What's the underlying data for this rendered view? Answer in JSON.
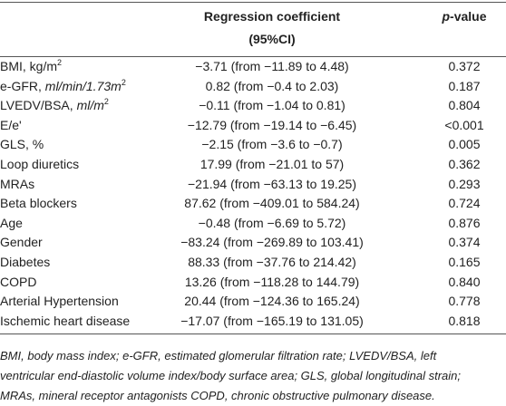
{
  "header": {
    "col2": [
      "Regression coefficient",
      "(95%CI)"
    ],
    "col3": [
      "p",
      "-value"
    ]
  },
  "table": {
    "rows": [
      {
        "label": [
          "BMI, kg/m",
          "2"
        ],
        "coef": "−3.71 (from −11.89 to 4.48)",
        "p": "0.372"
      },
      {
        "label": [
          "e-GFR, ",
          "ml/min/1.73m",
          "2"
        ],
        "coef": "0.82 (from −0.4 to 2.03)",
        "p": "0.187"
      },
      {
        "label": [
          "LVEDV/BSA, ",
          "ml/m",
          "2"
        ],
        "coef": "−0.11 (from −1.04 to 0.81)",
        "p": "0.804"
      },
      {
        "label": [
          "E/e'"
        ],
        "coef": "−12.79 (from −19.14 to −6.45)",
        "p": "<0.001"
      },
      {
        "label": [
          "GLS, %"
        ],
        "coef": "−2.15 (from −3.6 to −0.7)",
        "p": "0.005"
      },
      {
        "label": [
          "Loop diuretics"
        ],
        "coef": "17.99 (from −21.01 to 57)",
        "p": "0.362"
      },
      {
        "label": [
          "MRAs"
        ],
        "coef": "−21.94 (from −63.13 to 19.25)",
        "p": "0.293"
      },
      {
        "label": [
          "Beta blockers"
        ],
        "coef": "87.62 (from −409.01 to 584.24)",
        "p": "0.724"
      },
      {
        "label": [
          "Age"
        ],
        "coef": "−0.48 (from −6.69 to 5.72)",
        "p": "0.876"
      },
      {
        "label": [
          "Gender"
        ],
        "coef": "−83.24 (from −269.89 to 103.41)",
        "p": "0.374"
      },
      {
        "label": [
          "Diabetes"
        ],
        "coef": "88.33 (from −37.76 to 214.42)",
        "p": "0.165"
      },
      {
        "label": [
          "COPD"
        ],
        "coef": "13.26 (from −118.28 to 144.79)",
        "p": "0.840"
      },
      {
        "label": [
          "Arterial Hypertension"
        ],
        "coef": "20.44 (from −124.36 to 165.24)",
        "p": "0.778"
      },
      {
        "label": [
          "Ischemic heart disease"
        ],
        "coef": "−17.07 (from −165.19 to 131.05)",
        "p": "0.818"
      }
    ]
  },
  "footnote": [
    "BMI, body mass index; e-GFR, estimated glomerular filtration rate; LVEDV/BSA, left",
    "ventricular end-diastolic volume index/body surface area; GLS, global longitudinal strain;",
    "MRAs, mineral receptor antagonists COPD, chronic obstructive pulmonary disease."
  ]
}
